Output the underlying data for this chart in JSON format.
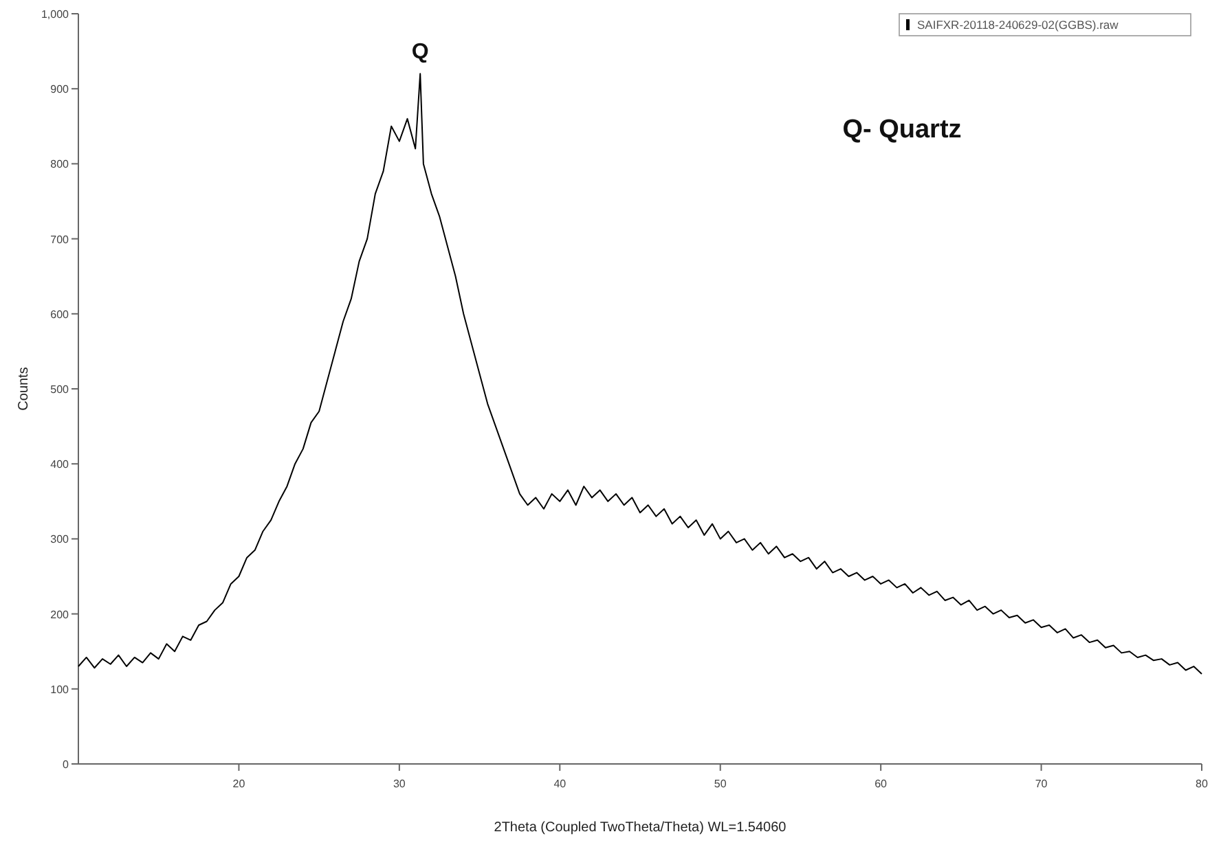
{
  "chart_data": {
    "type": "line",
    "xlabel": "2Theta (Coupled TwoTheta/Theta) WL=1.54060",
    "ylabel": "Counts",
    "xlim": [
      10,
      80
    ],
    "ylim": [
      0,
      1000
    ],
    "xticks": [
      20,
      30,
      40,
      50,
      60,
      70,
      80
    ],
    "yticks": [
      0,
      100,
      200,
      300,
      400,
      500,
      600,
      700,
      800,
      900,
      {
        "value": 1000,
        "label": "1,000"
      }
    ],
    "grid": false,
    "legend": "top right",
    "marker": "none",
    "line_style": "solid",
    "annotations": [
      {
        "text": "Q",
        "x": 31.3,
        "y": 920
      },
      "Q- Quartz"
    ],
    "series": [
      {
        "name": "SAIFXR-20118-240629-02(GGBS).raw",
        "color": "#000000",
        "x": [
          10,
          10.5,
          11,
          11.5,
          12,
          12.5,
          13,
          13.5,
          14,
          14.5,
          15,
          15.5,
          16,
          16.5,
          17,
          17.5,
          18,
          18.5,
          19,
          19.5,
          20,
          20.5,
          21,
          21.5,
          22,
          22.5,
          23,
          23.5,
          24,
          24.5,
          25,
          25.5,
          26,
          26.5,
          27,
          27.5,
          28,
          28.5,
          29,
          29.5,
          30,
          30.5,
          31,
          31.3,
          31.5,
          32,
          32.5,
          33,
          33.5,
          34,
          34.5,
          35,
          35.5,
          36,
          36.5,
          37,
          37.5,
          38,
          38.5,
          39,
          39.5,
          40,
          40.5,
          41,
          41.5,
          42,
          42.5,
          43,
          43.5,
          44,
          44.5,
          45,
          45.5,
          46,
          46.5,
          47,
          47.5,
          48,
          48.5,
          49,
          49.5,
          50,
          50.5,
          51,
          51.5,
          52,
          52.5,
          53,
          53.5,
          54,
          54.5,
          55,
          55.5,
          56,
          56.5,
          57,
          57.5,
          58,
          58.5,
          59,
          59.5,
          60,
          60.5,
          61,
          61.5,
          62,
          62.5,
          63,
          63.5,
          64,
          64.5,
          65,
          65.5,
          66,
          66.5,
          67,
          67.5,
          68,
          68.5,
          69,
          69.5,
          70,
          70.5,
          71,
          71.5,
          72,
          72.5,
          73,
          73.5,
          74,
          74.5,
          75,
          75.5,
          76,
          76.5,
          77,
          77.5,
          78,
          78.5,
          79,
          79.5,
          80
        ],
        "values": [
          130,
          142,
          128,
          140,
          133,
          145,
          130,
          142,
          135,
          148,
          140,
          160,
          150,
          170,
          165,
          185,
          190,
          205,
          215,
          240,
          250,
          275,
          285,
          310,
          325,
          350,
          370,
          400,
          420,
          455,
          470,
          510,
          550,
          590,
          620,
          670,
          700,
          760,
          790,
          850,
          830,
          860,
          820,
          920,
          800,
          760,
          730,
          690,
          650,
          600,
          560,
          520,
          480,
          450,
          420,
          390,
          360,
          345,
          355,
          340,
          360,
          350,
          365,
          345,
          370,
          355,
          365,
          350,
          360,
          345,
          355,
          335,
          345,
          330,
          340,
          320,
          330,
          315,
          325,
          305,
          320,
          300,
          310,
          295,
          300,
          285,
          295,
          280,
          290,
          275,
          280,
          270,
          275,
          260,
          270,
          255,
          260,
          250,
          255,
          245,
          250,
          240,
          245,
          235,
          240,
          228,
          235,
          225,
          230,
          218,
          222,
          212,
          218,
          205,
          210,
          200,
          205,
          195,
          198,
          188,
          192,
          182,
          185,
          175,
          180,
          168,
          172,
          162,
          165,
          155,
          158,
          148,
          150,
          142,
          145,
          138,
          140,
          132,
          135,
          125,
          130,
          120
        ]
      }
    ]
  }
}
